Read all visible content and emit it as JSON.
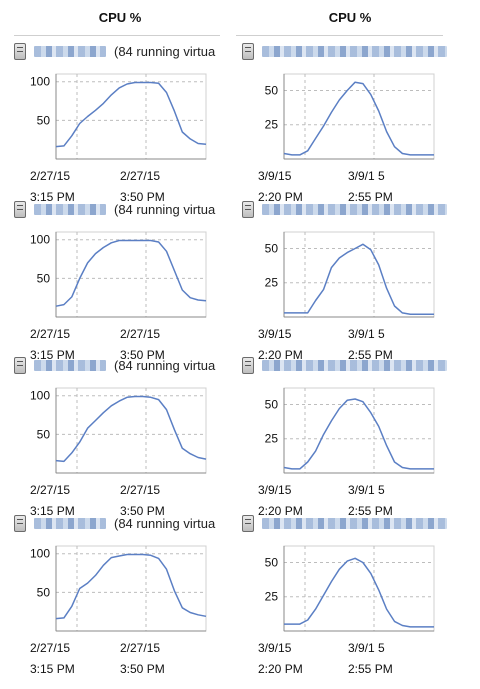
{
  "columns": [
    "CPU %",
    "CPU %"
  ],
  "host_suffix": "(84 running virtua",
  "colors": {
    "line": "#5b7fc4",
    "grid": "#bdbdbd",
    "axis": "#888888",
    "name_blur": "#9fb6d8"
  },
  "chart_data": [
    {
      "type": "line",
      "title": "",
      "xlabel": "",
      "ylabel": "",
      "ylim": [
        0,
        110
      ],
      "yticks": [
        50,
        100
      ],
      "x_tick_labels": [
        [
          "2/27/15",
          "3:15 PM"
        ],
        [
          "2/27/15",
          "3:50 PM"
        ]
      ],
      "grid": "dashed",
      "host_label": "(84 running virtua",
      "series": [
        {
          "values": [
            16,
            17,
            30,
            46,
            55,
            63,
            72,
            83,
            92,
            97,
            99,
            99,
            99,
            98,
            86,
            62,
            35,
            26,
            20,
            19
          ]
        }
      ]
    },
    {
      "type": "line",
      "title": "",
      "xlabel": "",
      "ylabel": "",
      "ylim": [
        0,
        62
      ],
      "yticks": [
        25,
        50
      ],
      "x_tick_labels": [
        [
          "3/9/15",
          "2:20 PM"
        ],
        [
          "3/9/1 5",
          "2:55 PM"
        ]
      ],
      "grid": "dashed",
      "host_label": "",
      "series": [
        {
          "values": [
            4,
            3,
            3,
            6,
            15,
            24,
            34,
            43,
            50,
            56,
            55,
            47,
            35,
            20,
            9,
            4,
            3,
            3,
            3,
            3
          ]
        }
      ]
    },
    {
      "type": "line",
      "title": "",
      "xlabel": "",
      "ylabel": "",
      "ylim": [
        0,
        110
      ],
      "yticks": [
        50,
        100
      ],
      "x_tick_labels": [
        [
          "2/27/15",
          "3:15 PM"
        ],
        [
          "2/27/15",
          "3:50 PM"
        ]
      ],
      "grid": "dashed",
      "host_label": "(84 running virtua",
      "series": [
        {
          "values": [
            14,
            16,
            26,
            50,
            70,
            82,
            90,
            96,
            99,
            99,
            99,
            99,
            99,
            97,
            85,
            60,
            35,
            25,
            22,
            21
          ]
        }
      ]
    },
    {
      "type": "line",
      "title": "",
      "xlabel": "",
      "ylabel": "",
      "ylim": [
        0,
        62
      ],
      "yticks": [
        25,
        50
      ],
      "x_tick_labels": [
        [
          "3/9/15",
          "2:20 PM"
        ],
        [
          "3/9/1 5",
          "2:55 PM"
        ]
      ],
      "grid": "dashed",
      "host_label": "",
      "series": [
        {
          "values": [
            3,
            3,
            3,
            3,
            12,
            20,
            36,
            43,
            47,
            50,
            53,
            49,
            38,
            21,
            8,
            3,
            2,
            2,
            2,
            2
          ]
        }
      ]
    },
    {
      "type": "line",
      "title": "",
      "xlabel": "",
      "ylabel": "",
      "ylim": [
        0,
        110
      ],
      "yticks": [
        50,
        100
      ],
      "x_tick_labels": [
        [
          "2/27/15",
          "3:15 PM"
        ],
        [
          "2/27/15",
          "3:50 PM"
        ]
      ],
      "grid": "dashed",
      "host_label": "(84 running virtua",
      "series": [
        {
          "values": [
            16,
            15,
            26,
            40,
            58,
            68,
            78,
            87,
            93,
            98,
            99,
            99,
            98,
            95,
            82,
            56,
            32,
            25,
            20,
            18
          ]
        }
      ]
    },
    {
      "type": "line",
      "title": "",
      "xlabel": "",
      "ylabel": "",
      "ylim": [
        0,
        62
      ],
      "yticks": [
        25,
        50
      ],
      "x_tick_labels": [
        [
          "3/9/15",
          "2:20 PM"
        ],
        [
          "3/9/1 5",
          "2:55 PM"
        ]
      ],
      "grid": "dashed",
      "host_label": "",
      "series": [
        {
          "values": [
            4,
            3,
            3,
            8,
            16,
            28,
            38,
            47,
            53,
            54,
            52,
            44,
            34,
            20,
            8,
            4,
            3,
            3,
            3,
            3
          ]
        }
      ]
    },
    {
      "type": "line",
      "title": "",
      "xlabel": "",
      "ylabel": "",
      "ylim": [
        0,
        110
      ],
      "yticks": [
        50,
        100
      ],
      "x_tick_labels": [
        [
          "2/27/15",
          "3:15 PM"
        ],
        [
          "2/27/15",
          "3:50 PM"
        ]
      ],
      "grid": "dashed",
      "host_label": "(84 running virtua",
      "series": [
        {
          "values": [
            16,
            17,
            32,
            55,
            62,
            72,
            85,
            95,
            97,
            99,
            99,
            99,
            98,
            94,
            80,
            52,
            30,
            24,
            21,
            19
          ]
        }
      ]
    },
    {
      "type": "line",
      "title": "",
      "xlabel": "",
      "ylabel": "",
      "ylim": [
        0,
        62
      ],
      "yticks": [
        25,
        50
      ],
      "x_tick_labels": [
        [
          "3/9/15",
          "2:20 PM"
        ],
        [
          "3/9/1 5",
          "2:55 PM"
        ]
      ],
      "grid": "dashed",
      "host_label": "",
      "series": [
        {
          "values": [
            5,
            5,
            5,
            8,
            16,
            26,
            36,
            45,
            51,
            53,
            50,
            42,
            30,
            16,
            7,
            4,
            3,
            3,
            3,
            3
          ]
        }
      ]
    }
  ]
}
